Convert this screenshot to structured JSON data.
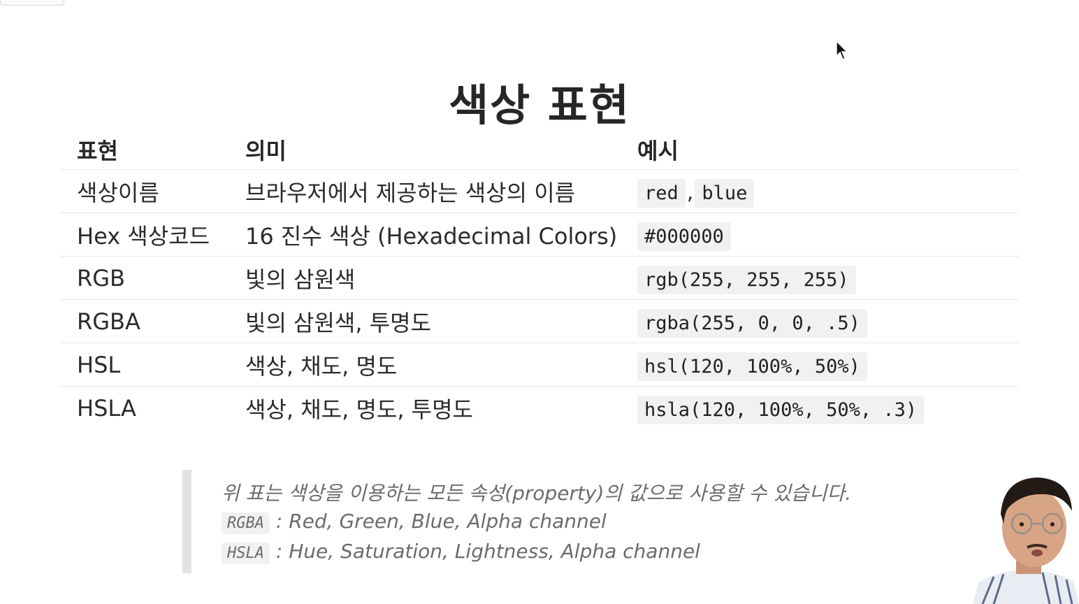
{
  "title": "색상 표현",
  "table": {
    "headers": [
      "표현",
      "의미",
      "예시"
    ],
    "rows": [
      {
        "expr": "색상이름",
        "meaning": "브라우저에서 제공하는 색상의 이름",
        "example1": "red",
        "sep": ",",
        "example2": "blue"
      },
      {
        "expr": "Hex 색상코드",
        "meaning": "16 진수 색상 (Hexadecimal Colors)",
        "example1": "#000000"
      },
      {
        "expr": "RGB",
        "meaning": "빛의 삼원색",
        "example1": "rgb(255, 255, 255)"
      },
      {
        "expr": "RGBA",
        "meaning": "빛의 삼원색, 투명도",
        "example1": "rgba(255, 0, 0, .5)"
      },
      {
        "expr": "HSL",
        "meaning": "색상, 채도, 명도",
        "example1": "hsl(120, 100%, 50%)"
      },
      {
        "expr": "HSLA",
        "meaning": "색상, 채도, 명도, 투명도",
        "example1": "hsla(120, 100%, 50%, .3)"
      }
    ]
  },
  "note": {
    "line1": "위 표는 색상을 이용하는 모든 속성(property)의 값으로 사용할 수 있습니다.",
    "line2_code": "RGBA",
    "line2_text": " : Red, Green, Blue, Alpha channel",
    "line3_code": "HSLA",
    "line3_text": " : Hue, Saturation, Lightness, Alpha channel"
  },
  "colors": {
    "text": "#2b2b2b",
    "code_bg": "#f1f1f1",
    "note_text": "#6b6b6b",
    "note_bar": "#e3e3e3"
  },
  "icons": {
    "cursor": "mouse-pointer-icon"
  }
}
